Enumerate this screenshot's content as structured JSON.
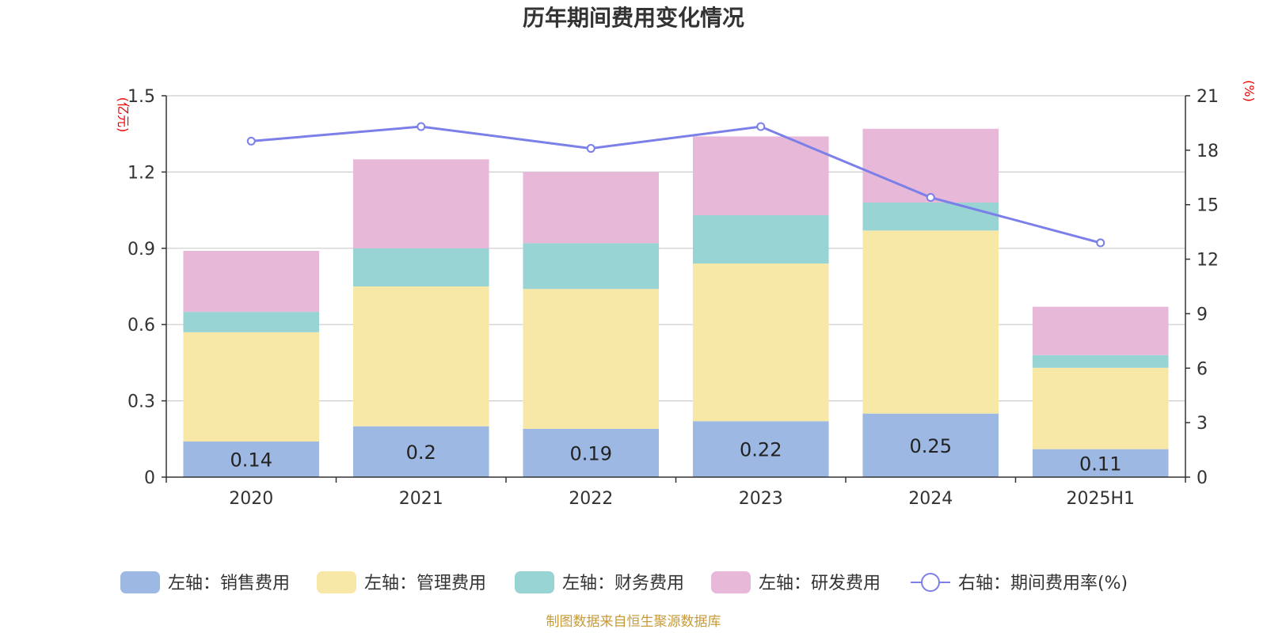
{
  "chart_data": {
    "type": "bar",
    "stacked": true,
    "title": "历年期间费用变化情况",
    "categories": [
      "2020",
      "2021",
      "2022",
      "2023",
      "2024",
      "2025H1"
    ],
    "y_left": {
      "unit": "(亿元)",
      "ylim": [
        0,
        1.5
      ],
      "ticks": [
        "0",
        "0.3",
        "0.6",
        "0.9",
        "1.2",
        "1.5"
      ]
    },
    "y_right": {
      "unit": "(%)",
      "ylim": [
        0,
        21
      ],
      "ticks": [
        "0",
        "3",
        "6",
        "9",
        "12",
        "15",
        "18",
        "21"
      ]
    },
    "grid": true,
    "legend_position": "bottom",
    "series": [
      {
        "name": "左轴：销售费用",
        "axis": "left",
        "color": "#9db8e2",
        "values": [
          0.14,
          0.2,
          0.19,
          0.22,
          0.25,
          0.11
        ],
        "labels": [
          "0.14",
          "0.2",
          "0.19",
          "0.22",
          "0.25",
          "0.11"
        ]
      },
      {
        "name": "左轴：管理费用",
        "axis": "left",
        "color": "#f8e8a8",
        "values": [
          0.43,
          0.55,
          0.55,
          0.62,
          0.72,
          0.32
        ]
      },
      {
        "name": "左轴：财务费用",
        "axis": "left",
        "color": "#98d4d4",
        "values": [
          0.08,
          0.15,
          0.18,
          0.19,
          0.11,
          0.05
        ]
      },
      {
        "name": "左轴：研发费用",
        "axis": "left",
        "color": "#e8b8d8",
        "values": [
          0.24,
          0.35,
          0.28,
          0.31,
          0.29,
          0.19
        ]
      },
      {
        "name": "右轴：期间费用率(%)",
        "axis": "right",
        "type": "line",
        "color": "#7b7fe8",
        "values": [
          18.5,
          19.3,
          18.1,
          19.3,
          15.4,
          12.9
        ]
      }
    ],
    "source": "制图数据来自恒生聚源数据库"
  }
}
